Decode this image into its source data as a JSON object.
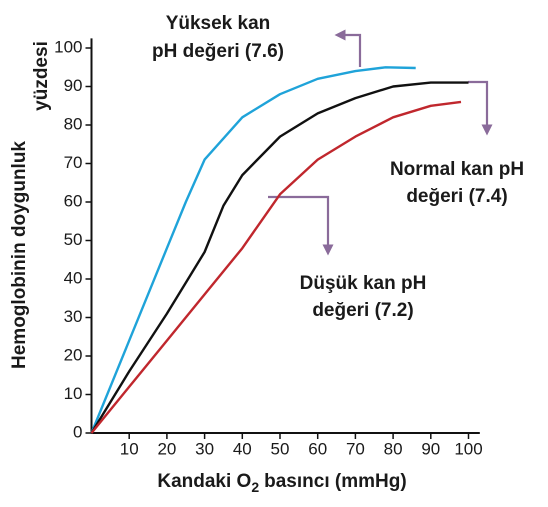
{
  "chart_data": {
    "type": "line",
    "xlabel": {
      "text": "Kandaki O",
      "sub": "2",
      "rest": "basıncı (mmHg)"
    },
    "ylabel": [
      "Hemoglobinin doygunluk",
      "yüzdesi"
    ],
    "xlim": [
      0,
      103
    ],
    "ylim": [
      0,
      102.5
    ],
    "xticks": [
      10,
      20,
      30,
      40,
      50,
      60,
      70,
      80,
      90,
      100
    ],
    "yticks": [
      0,
      10,
      20,
      30,
      40,
      50,
      60,
      70,
      80,
      90,
      100
    ],
    "series": [
      {
        "color": "#1fa3d9",
        "x": [
          0,
          10,
          20,
          25,
          30,
          40,
          50,
          60,
          70,
          78,
          86
        ],
        "values": [
          0,
          24,
          48,
          60,
          71,
          82,
          88,
          92,
          94,
          95,
          94.8
        ]
      },
      {
        "color": "#111111",
        "x": [
          0,
          10,
          20,
          30,
          35,
          40,
          50,
          60,
          70,
          80,
          90,
          100
        ],
        "values": [
          0,
          16,
          31,
          47,
          59,
          67,
          77,
          83,
          87,
          90,
          91,
          91
        ]
      },
      {
        "color": "#c0272d",
        "x": [
          0,
          10,
          20,
          30,
          40,
          45,
          50,
          60,
          70,
          80,
          90,
          98
        ],
        "values": [
          0,
          12,
          24,
          36,
          48,
          55,
          62,
          71,
          77,
          82,
          85,
          86
        ]
      }
    ],
    "annotations": [
      {
        "lines": [
          "Yüksek kan",
          "pH değeri (7.6)"
        ]
      },
      {
        "lines": [
          "Normal kan pH",
          "değeri (7.4)"
        ]
      },
      {
        "lines": [
          "Düşük kan pH",
          "değeri (7.2)"
        ]
      }
    ]
  }
}
